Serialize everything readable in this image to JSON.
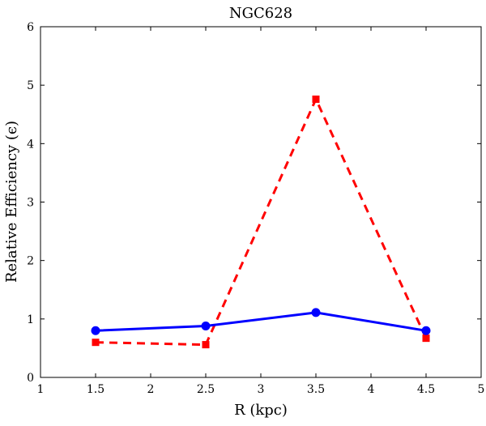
{
  "chart_data": {
    "type": "line",
    "title": "NGC628",
    "xlabel": "R (kpc)",
    "ylabel": "Relative Efficiency (ϵ)",
    "xlim": [
      1,
      5
    ],
    "ylim": [
      0,
      6
    ],
    "xticks": [
      "1",
      "1.5",
      "2",
      "2.5",
      "3",
      "3.5",
      "4",
      "4.5",
      "5"
    ],
    "yticks": [
      "0",
      "1",
      "2",
      "3",
      "4",
      "5",
      "6"
    ],
    "grid": false,
    "x": [
      1.5,
      2.5,
      3.5,
      4.5
    ],
    "series": [
      {
        "name": "solid-blue-circle",
        "color": "#0000ff",
        "style": "solid",
        "marker": "circle",
        "values": [
          0.8,
          0.88,
          1.11,
          0.8
        ]
      },
      {
        "name": "dashed-red-square",
        "color": "#ff0000",
        "style": "dashed",
        "marker": "square",
        "values": [
          0.6,
          0.56,
          4.76,
          0.67
        ]
      }
    ]
  }
}
